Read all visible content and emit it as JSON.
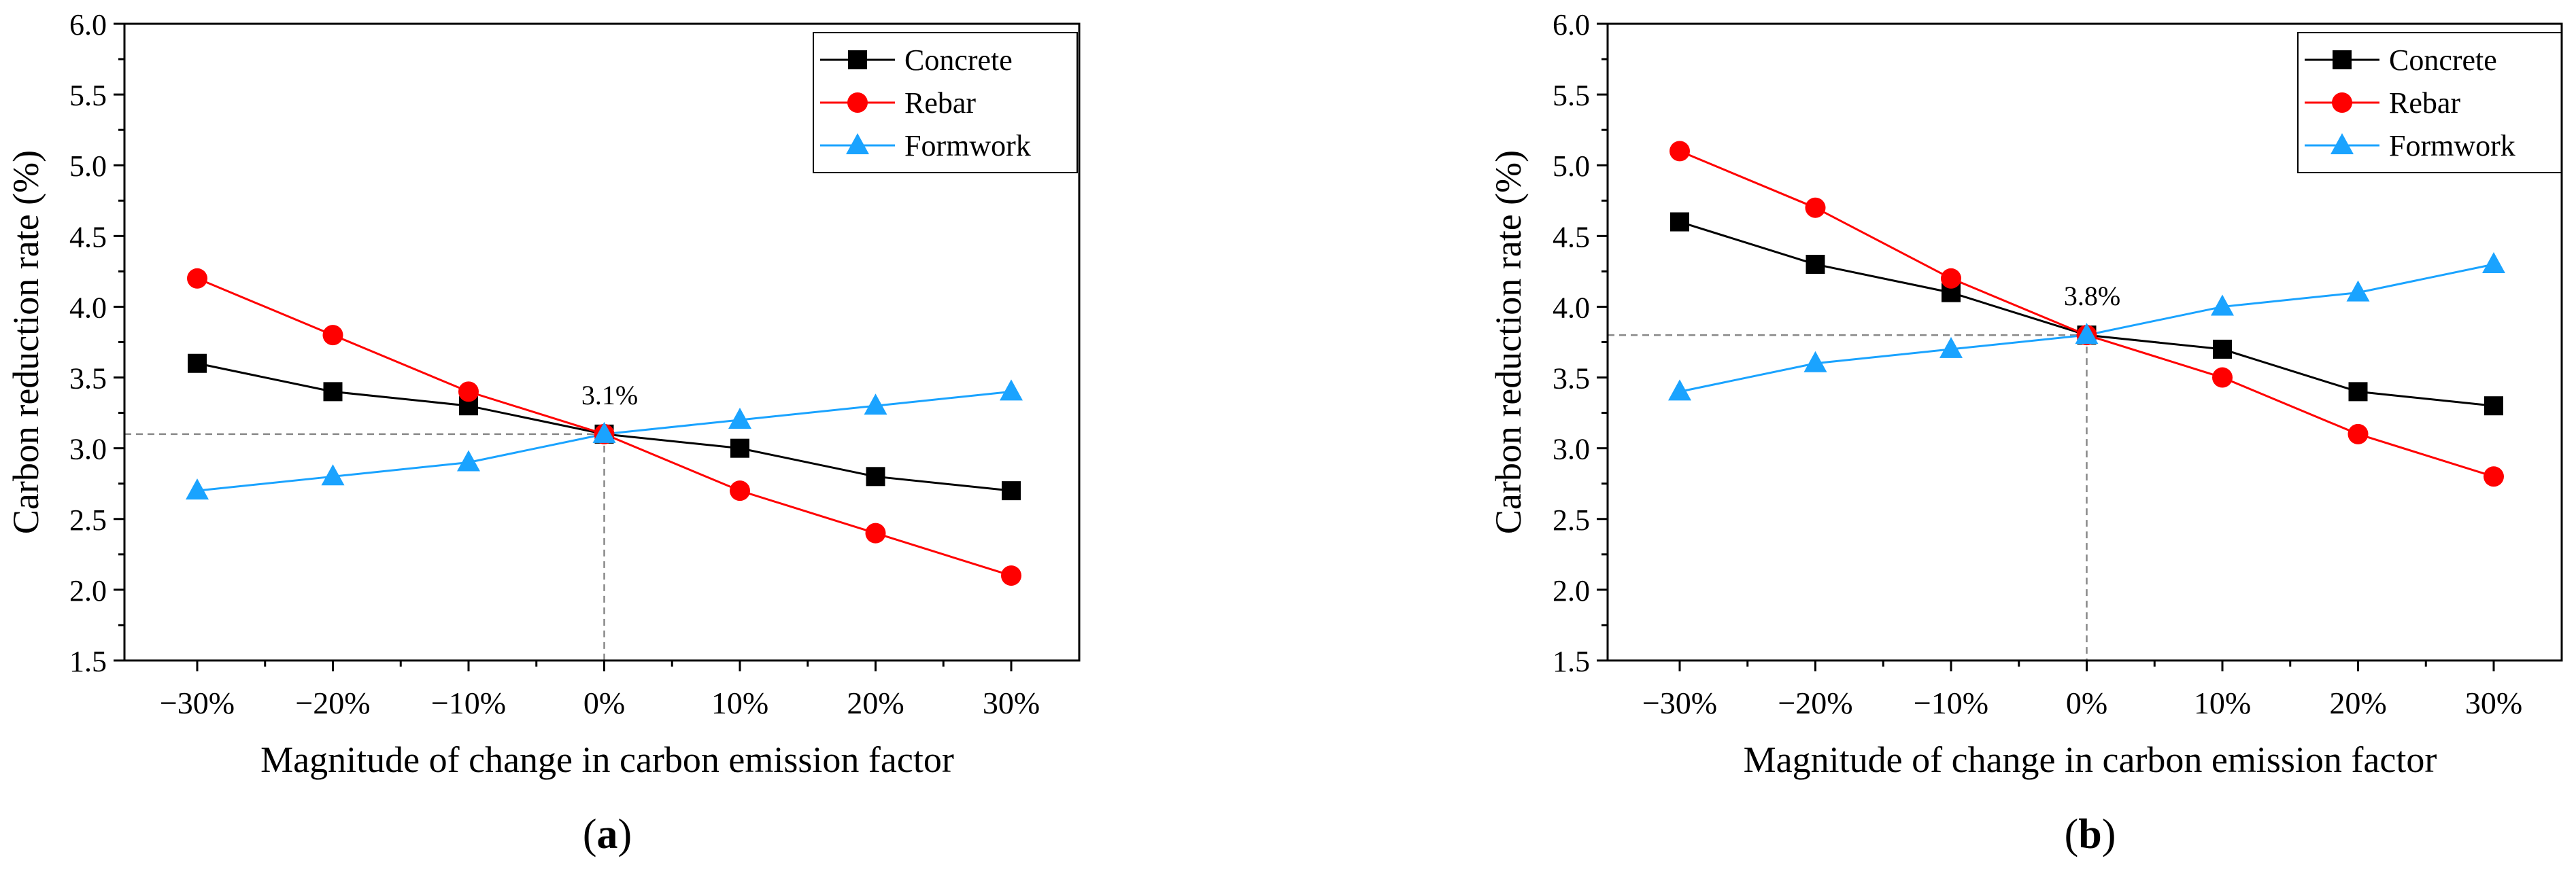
{
  "chart_data": [
    {
      "type": "line",
      "panel_label": "a",
      "xlabel": "Magnitude of change in carbon emission factor",
      "ylabel": "Carbon reduction rate (%)",
      "categories": [
        "−30%",
        "−20%",
        "−10%",
        "0%",
        "10%",
        "20%",
        "30%"
      ],
      "ylim": [
        1.5,
        6.0
      ],
      "yticks": [
        "1.5",
        "2.0",
        "2.5",
        "3.0",
        "3.5",
        "4.0",
        "4.5",
        "5.0",
        "5.5",
        "6.0"
      ],
      "legend_position": "top-right",
      "series": [
        {
          "name": "Concrete",
          "color": "#000000",
          "marker": "square",
          "values": [
            3.6,
            3.4,
            3.3,
            3.1,
            3.0,
            2.8,
            2.7
          ]
        },
        {
          "name": "Rebar",
          "color": "#ff0000",
          "marker": "circle",
          "values": [
            4.2,
            3.8,
            3.4,
            3.1,
            2.7,
            2.4,
            2.1
          ]
        },
        {
          "name": "Formwork",
          "color": "#1aa3ff",
          "marker": "triangle",
          "values": [
            2.7,
            2.8,
            2.9,
            3.1,
            3.2,
            3.3,
            3.4
          ]
        }
      ],
      "reference": {
        "category_index": 3,
        "value": 3.1,
        "label": "3.1%"
      }
    },
    {
      "type": "line",
      "panel_label": "b",
      "xlabel": "Magnitude of change in carbon emission factor",
      "ylabel": "Carbon reduction rate (%)",
      "categories": [
        "−30%",
        "−20%",
        "−10%",
        "0%",
        "10%",
        "20%",
        "30%"
      ],
      "ylim": [
        1.5,
        6.0
      ],
      "yticks": [
        "1.5",
        "2.0",
        "2.5",
        "3.0",
        "3.5",
        "4.0",
        "4.5",
        "5.0",
        "5.5",
        "6.0"
      ],
      "legend_position": "top-right",
      "series": [
        {
          "name": "Concrete",
          "color": "#000000",
          "marker": "square",
          "values": [
            4.6,
            4.3,
            4.1,
            3.8,
            3.7,
            3.4,
            3.3
          ]
        },
        {
          "name": "Rebar",
          "color": "#ff0000",
          "marker": "circle",
          "values": [
            5.1,
            4.7,
            4.2,
            3.8,
            3.5,
            3.1,
            2.8
          ]
        },
        {
          "name": "Formwork",
          "color": "#1aa3ff",
          "marker": "triangle",
          "values": [
            3.4,
            3.6,
            3.7,
            3.8,
            4.0,
            4.1,
            4.3
          ]
        }
      ],
      "reference": {
        "category_index": 3,
        "value": 3.8,
        "label": "3.8%"
      }
    }
  ]
}
